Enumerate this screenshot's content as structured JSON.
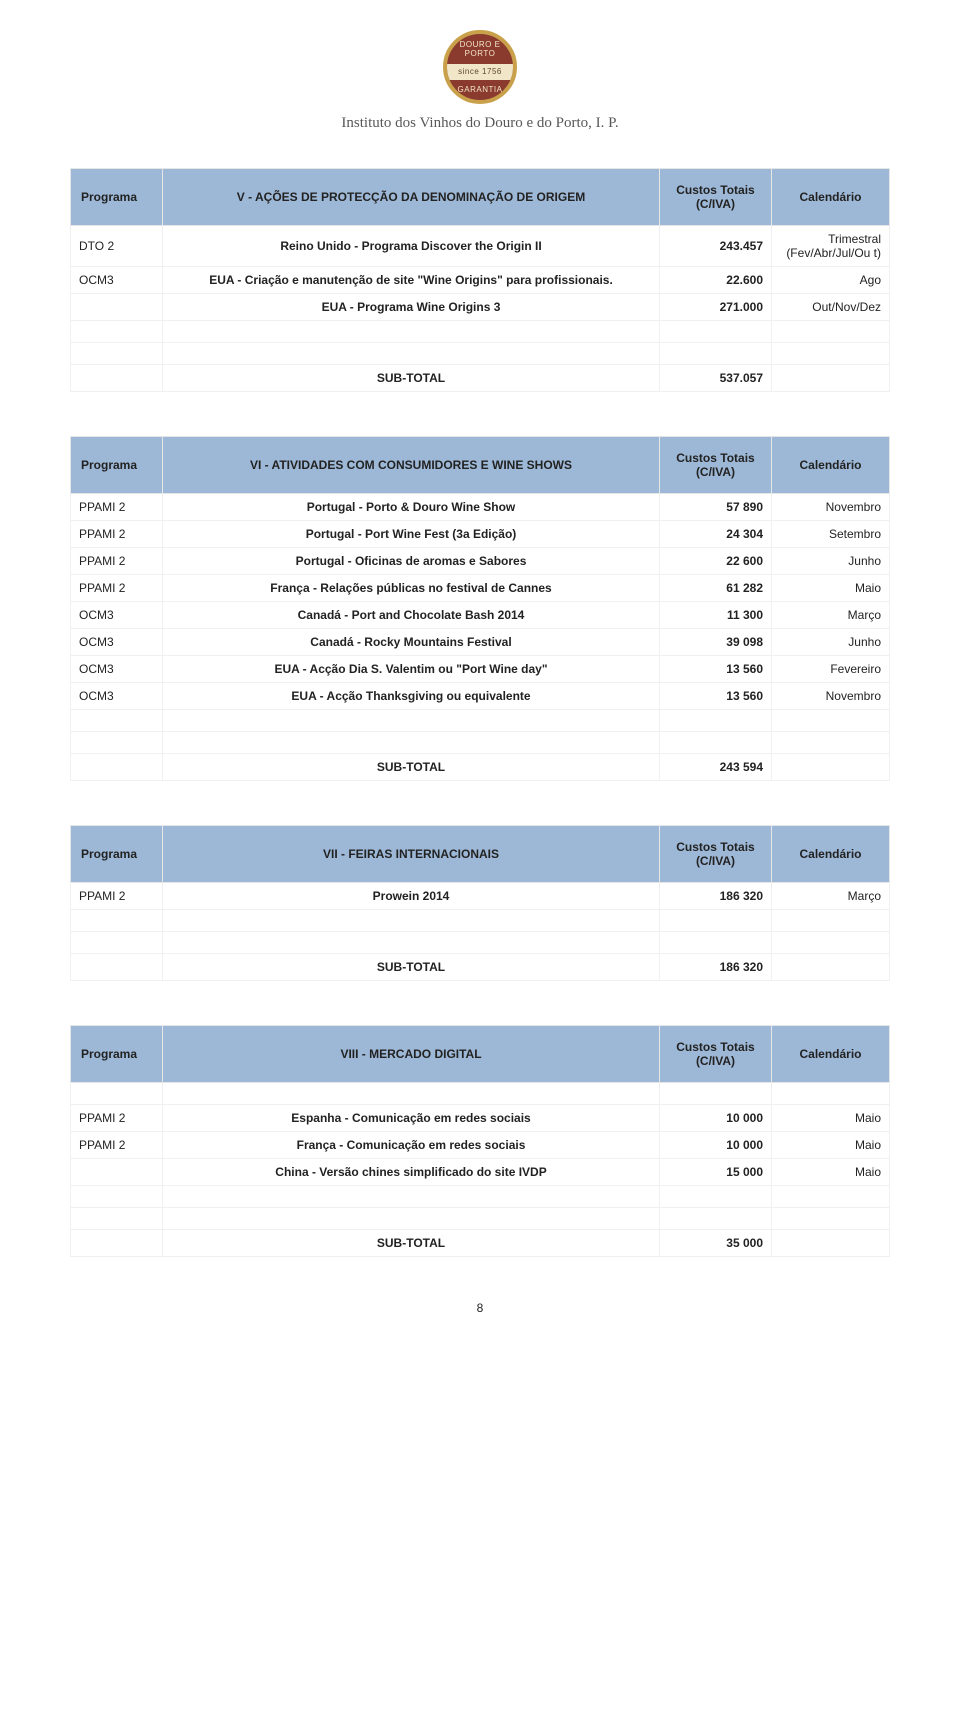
{
  "org_name": "Instituto dos Vinhos do Douro e do Porto, I. P.",
  "logo": {
    "top": "DOURO E PORTO",
    "mid": "since 1756",
    "bot": "GARANTIA"
  },
  "col_headers": {
    "programa": "Programa",
    "custos": "Custos Totais (C/IVA)",
    "calendario": "Calendário"
  },
  "subtotal_label": "SUB-TOTAL",
  "page_number": "8",
  "sections": [
    {
      "title": "V - AÇÕES DE PROTECÇÃO DA DENOMINAÇÃO DE ORIGEM",
      "rows": [
        {
          "prog": "DTO 2",
          "desc": "Reino Unido - Programa Discover the Origin II",
          "cost": "243.457",
          "cal": "Trimestral (Fev/Abr/Jul/Ou t)"
        },
        {
          "prog": "OCM3",
          "desc": "EUA - Criação e manutenção de site \"Wine Origins\" para profissionais.",
          "cost": "22.600",
          "cal": "Ago"
        },
        {
          "prog": "",
          "desc": "EUA - Programa Wine Origins 3",
          "cost": "271.000",
          "cal": "Out/Nov/Dez"
        }
      ],
      "subtotal": "537.057"
    },
    {
      "title": "VI - ATIVIDADES COM CONSUMIDORES E WINE SHOWS",
      "rows": [
        {
          "prog": "PPAMI 2",
          "desc": "Portugal - Porto & Douro Wine Show",
          "cost": "57 890",
          "cal": "Novembro"
        },
        {
          "prog": "PPAMI 2",
          "desc": "Portugal - Port Wine Fest (3a Edição)",
          "cost": "24 304",
          "cal": "Setembro"
        },
        {
          "prog": "PPAMI 2",
          "desc": "Portugal - Oficinas de aromas e Sabores",
          "cost": "22 600",
          "cal": "Junho"
        },
        {
          "prog": "PPAMI 2",
          "desc": "França - Relações públicas no festival de Cannes",
          "cost": "61 282",
          "cal": "Maio"
        },
        {
          "prog": "OCM3",
          "desc": "Canadá - Port and Chocolate Bash 2014",
          "cost": "11 300",
          "cal": "Março"
        },
        {
          "prog": "OCM3",
          "desc": "Canadá - Rocky Mountains Festival",
          "cost": "39 098",
          "cal": "Junho"
        },
        {
          "prog": "OCM3",
          "desc": "EUA - Acção Dia S. Valentim ou \"Port Wine day\"",
          "cost": "13 560",
          "cal": "Fevereiro"
        },
        {
          "prog": "OCM3",
          "desc": "EUA - Acção Thanksgiving ou equivalente",
          "cost": "13 560",
          "cal": "Novembro"
        }
      ],
      "subtotal": "243 594"
    },
    {
      "title": "VII - FEIRAS INTERNACIONAIS",
      "rows": [
        {
          "prog": "PPAMI 2",
          "desc": "Prowein 2014",
          "cost": "186 320",
          "cal": "Março"
        }
      ],
      "subtotal": "186 320"
    },
    {
      "title": "VIII - MERCADO DIGITAL",
      "leading_empty": 1,
      "rows": [
        {
          "prog": "PPAMI 2",
          "desc": "Espanha - Comunicação em redes sociais",
          "cost": "10 000",
          "cal": "Maio"
        },
        {
          "prog": "PPAMI 2",
          "desc": "França - Comunicação em redes sociais",
          "cost": "10 000",
          "cal": "Maio"
        },
        {
          "prog": "",
          "desc": "China - Versão chines simplificado do site IVDP",
          "cost": "15 000",
          "cal": "Maio"
        }
      ],
      "subtotal": "35 000"
    }
  ]
}
